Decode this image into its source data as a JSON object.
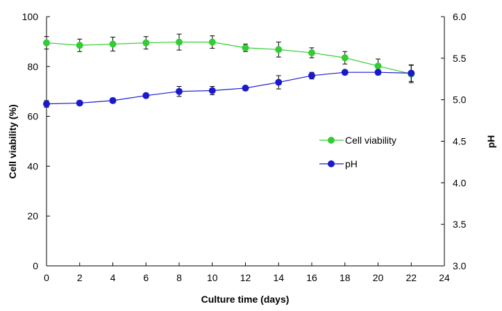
{
  "chart_data": {
    "type": "line",
    "title": "",
    "xlabel": "Culture time (days)",
    "ylabel": "Cell viability (%)",
    "y2label": "pH",
    "xlim": [
      0,
      24
    ],
    "ylim": [
      0,
      100
    ],
    "y2lim": [
      3.0,
      6.0
    ],
    "x_ticks": [
      "0",
      "2",
      "4",
      "6",
      "8",
      "10",
      "12",
      "14",
      "16",
      "18",
      "20",
      "22",
      "24"
    ],
    "y_ticks": [
      "0",
      "20",
      "40",
      "60",
      "80",
      "100"
    ],
    "y2_ticks": [
      "3.0",
      "3.5",
      "4.0",
      "4.5",
      "5.0",
      "5.5",
      "6.0"
    ],
    "grid": false,
    "legend_position": "right-middle",
    "series": [
      {
        "name": "Cell viability",
        "axis": "left",
        "color": "#33cc33",
        "x": [
          0,
          2,
          4,
          6,
          8,
          10,
          12,
          14,
          16,
          18,
          20,
          22
        ],
        "values": [
          89.5,
          88.5,
          89.0,
          89.5,
          89.8,
          89.8,
          87.5,
          86.8,
          85.5,
          83.5,
          80.2,
          77.0
        ],
        "errors": [
          2.5,
          2.5,
          2.8,
          2.5,
          3.2,
          2.5,
          1.5,
          3.0,
          2.0,
          2.5,
          2.8,
          3.5
        ]
      },
      {
        "name": "pH",
        "axis": "right",
        "color": "#1a1acc",
        "x": [
          0,
          2,
          4,
          6,
          8,
          10,
          12,
          14,
          16,
          18,
          20,
          22
        ],
        "values": [
          4.95,
          4.96,
          4.99,
          5.05,
          5.1,
          5.11,
          5.14,
          5.21,
          5.29,
          5.33,
          5.33,
          5.32
        ],
        "errors": [
          0.04,
          0.02,
          0.03,
          0.02,
          0.06,
          0.05,
          0.02,
          0.08,
          0.04,
          0.02,
          0.03,
          0.1
        ]
      }
    ]
  }
}
